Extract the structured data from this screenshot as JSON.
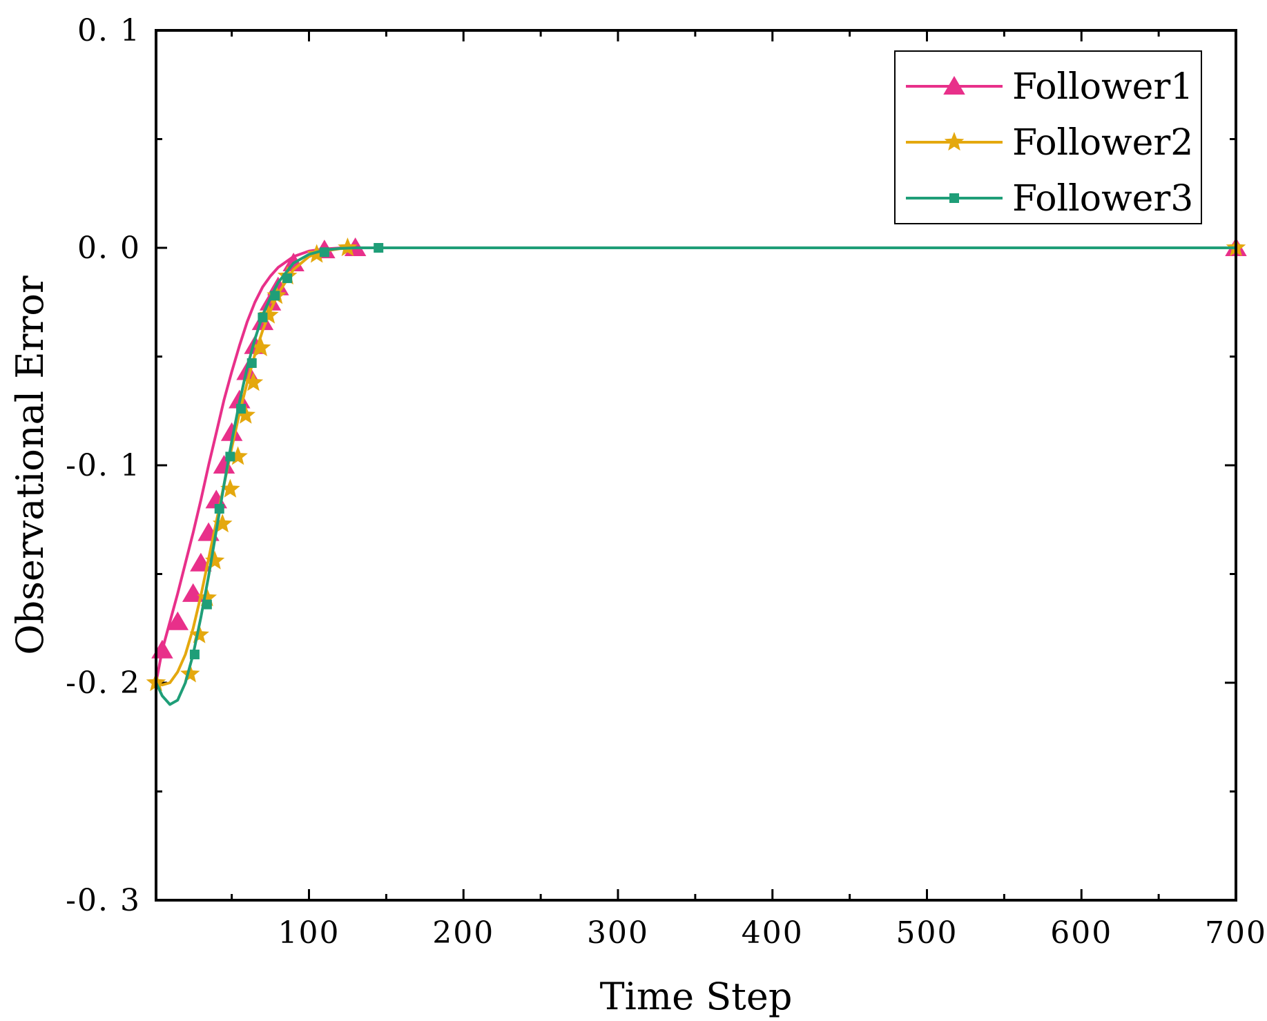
{
  "chart_data": {
    "type": "line",
    "title": "",
    "xlabel": "Time Step",
    "ylabel": "Observational Error",
    "xlim": [
      1,
      700
    ],
    "ylim": [
      -0.3,
      0.1
    ],
    "xticks": [
      100,
      200,
      300,
      400,
      500,
      600,
      700
    ],
    "xtick_labels": [
      "100",
      "200",
      "300",
      "400",
      "500",
      "600",
      "700"
    ],
    "yticks": [
      0.1,
      0.0,
      -0.1,
      -0.2,
      -0.3
    ],
    "ytick_labels": [
      "0. 1",
      "0. 0",
      "-0. 1",
      "-0. 2",
      "-0. 3"
    ],
    "legend_position": "top-right",
    "series": [
      {
        "name": "Follower1",
        "color": "#e8308a",
        "marker": "triangle",
        "x": [
          1,
          5,
          10,
          15,
          20,
          25,
          30,
          35,
          40,
          45,
          50,
          55,
          60,
          65,
          70,
          75,
          80,
          90,
          100,
          110,
          120,
          130,
          140,
          150,
          700
        ],
        "y": [
          -0.2,
          -0.185,
          -0.172,
          -0.159,
          -0.145,
          -0.131,
          -0.116,
          -0.1,
          -0.085,
          -0.07,
          -0.057,
          -0.045,
          -0.034,
          -0.025,
          -0.018,
          -0.013,
          -0.009,
          -0.004,
          -0.0015,
          -0.0005,
          -0.0001,
          0,
          0,
          0,
          0
        ],
        "markers_x": [
          5,
          15,
          25,
          30,
          35,
          40,
          45,
          50,
          55,
          60,
          65,
          70,
          75,
          80,
          90,
          110,
          130,
          700
        ],
        "markers_y": [
          -0.185,
          -0.172,
          -0.159,
          -0.145,
          -0.131,
          -0.116,
          -0.1,
          -0.085,
          -0.07,
          -0.057,
          -0.045,
          -0.034,
          -0.025,
          -0.018,
          -0.007,
          -0.001,
          0,
          0
        ]
      },
      {
        "name": "Follower2",
        "color": "#e4a80e",
        "marker": "star",
        "x": [
          1,
          5,
          10,
          15,
          20,
          25,
          30,
          35,
          40,
          45,
          50,
          55,
          60,
          65,
          70,
          75,
          80,
          90,
          100,
          110,
          120,
          130,
          140,
          150,
          700
        ],
        "y": [
          -0.2,
          -0.201,
          -0.2,
          -0.195,
          -0.187,
          -0.175,
          -0.16,
          -0.143,
          -0.126,
          -0.109,
          -0.092,
          -0.076,
          -0.062,
          -0.049,
          -0.038,
          -0.029,
          -0.021,
          -0.01,
          -0.004,
          -0.0015,
          -0.0004,
          0,
          0,
          0,
          0
        ],
        "markers_x": [
          1,
          23,
          29,
          34,
          39,
          44,
          49,
          54,
          59,
          64,
          69,
          74,
          79,
          86,
          105,
          125,
          700
        ],
        "markers_y": [
          -0.2,
          -0.196,
          -0.178,
          -0.161,
          -0.144,
          -0.127,
          -0.111,
          -0.096,
          -0.077,
          -0.062,
          -0.046,
          -0.031,
          -0.022,
          -0.013,
          -0.003,
          0,
          0
        ]
      },
      {
        "name": "Follower3",
        "color": "#1f9e78",
        "marker": "square",
        "x": [
          1,
          5,
          10,
          15,
          20,
          25,
          30,
          35,
          40,
          45,
          50,
          55,
          60,
          65,
          70,
          75,
          80,
          90,
          100,
          110,
          120,
          130,
          140,
          150,
          700
        ],
        "y": [
          -0.2,
          -0.206,
          -0.21,
          -0.208,
          -0.2,
          -0.187,
          -0.17,
          -0.151,
          -0.13,
          -0.109,
          -0.089,
          -0.071,
          -0.055,
          -0.042,
          -0.031,
          -0.023,
          -0.016,
          -0.007,
          -0.003,
          -0.001,
          -0.0003,
          0,
          0,
          0,
          0
        ],
        "markers_x": [
          26,
          34,
          42,
          49,
          56,
          63,
          70,
          78,
          86,
          110,
          145
        ],
        "markers_y": [
          -0.187,
          -0.164,
          -0.12,
          -0.096,
          -0.074,
          -0.053,
          -0.032,
          -0.022,
          -0.014,
          -0.002,
          0
        ]
      }
    ]
  }
}
